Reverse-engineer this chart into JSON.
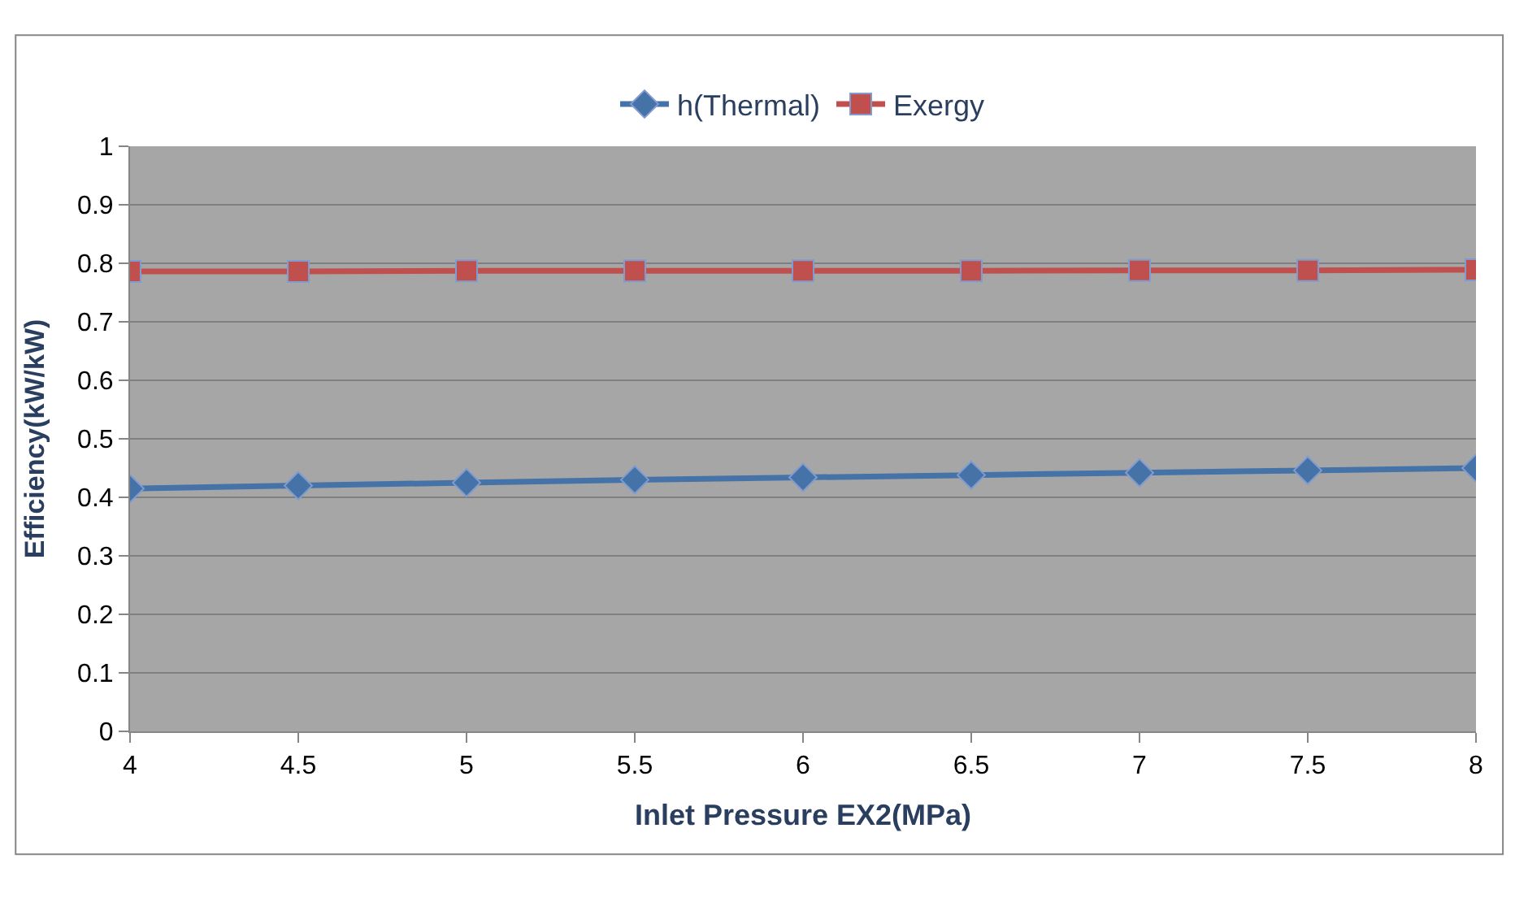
{
  "chart_data": {
    "type": "line",
    "xlabel": "Inlet Pressure EX2(MPa)",
    "ylabel": "Efficiency(kW/kW)",
    "x": [
      4,
      4.5,
      5,
      5.5,
      6,
      6.5,
      7,
      7.5,
      8
    ],
    "series": [
      {
        "name": "h(Thermal)",
        "color": "#4572a7",
        "marker": "diamond",
        "values": [
          0.415,
          0.42,
          0.425,
          0.43,
          0.434,
          0.438,
          0.442,
          0.446,
          0.45
        ]
      },
      {
        "name": "Exergy",
        "color": "#c0504d",
        "marker": "square",
        "values": [
          0.786,
          0.786,
          0.787,
          0.787,
          0.787,
          0.787,
          0.788,
          0.788,
          0.789
        ]
      }
    ],
    "xlim": [
      4,
      8
    ],
    "xticks": [
      4,
      4.5,
      5,
      5.5,
      6,
      6.5,
      7,
      7.5,
      8
    ],
    "ylim": [
      0,
      1
    ],
    "yticks": [
      0,
      0.1,
      0.2,
      0.3,
      0.4,
      0.5,
      0.6,
      0.7,
      0.8,
      0.9,
      1
    ],
    "grid": "y",
    "legend": "top"
  }
}
